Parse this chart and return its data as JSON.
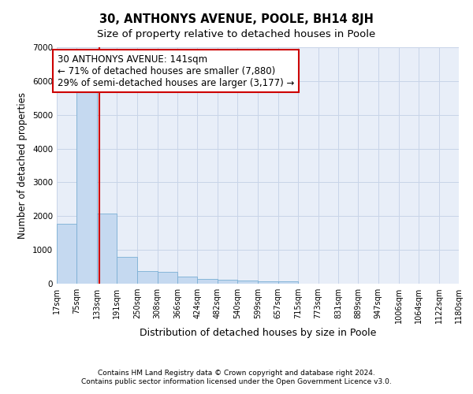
{
  "title": "30, ANTHONYS AVENUE, POOLE, BH14 8JH",
  "subtitle": "Size of property relative to detached houses in Poole",
  "xlabel": "Distribution of detached houses by size in Poole",
  "ylabel": "Number of detached properties",
  "footnote1": "Contains HM Land Registry data © Crown copyright and database right 2024.",
  "footnote2": "Contains public sector information licensed under the Open Government Licence v3.0.",
  "bin_edges": [
    17,
    75,
    133,
    191,
    250,
    308,
    366,
    424,
    482,
    540,
    599,
    657,
    715,
    773,
    831,
    889,
    947,
    1006,
    1064,
    1122,
    1180
  ],
  "bar_heights": [
    1780,
    5740,
    2080,
    790,
    370,
    340,
    200,
    130,
    110,
    100,
    80,
    70,
    0,
    0,
    0,
    0,
    0,
    0,
    0,
    0
  ],
  "bar_color": "#c5d9f0",
  "bar_edge_color": "#7bafd4",
  "grid_color": "#c8d4e8",
  "background_color": "#e8eef8",
  "property_line_x": 141,
  "property_line_color": "#cc0000",
  "annotation_line1": "30 ANTHONYS AVENUE: 141sqm",
  "annotation_line2": "← 71% of detached houses are smaller (7,880)",
  "annotation_line3": "29% of semi-detached houses are larger (3,177) →",
  "annotation_box_color": "#cc0000",
  "ylim": [
    0,
    7000
  ],
  "yticks": [
    0,
    1000,
    2000,
    3000,
    4000,
    5000,
    6000,
    7000
  ],
  "xtick_labels": [
    "17sqm",
    "75sqm",
    "133sqm",
    "191sqm",
    "250sqm",
    "308sqm",
    "366sqm",
    "424sqm",
    "482sqm",
    "540sqm",
    "599sqm",
    "657sqm",
    "715sqm",
    "773sqm",
    "831sqm",
    "889sqm",
    "947sqm",
    "1006sqm",
    "1064sqm",
    "1122sqm",
    "1180sqm"
  ],
  "title_fontsize": 10.5,
  "subtitle_fontsize": 9.5,
  "xlabel_fontsize": 9,
  "ylabel_fontsize": 8.5,
  "tick_fontsize": 7,
  "annotation_fontsize": 8.5,
  "footnote_fontsize": 6.5
}
